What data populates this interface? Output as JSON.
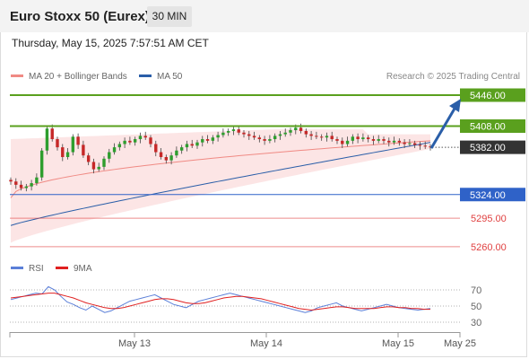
{
  "header": {
    "title": "Euro Stoxx 50 (Eurex)",
    "timeframe": "30 MIN",
    "timestamp": "Thursday, May 15, 2025 7:57:51 AM CET"
  },
  "legend": {
    "items": [
      {
        "label": "MA 20 + Bollinger Bands",
        "color": "#f08a84"
      },
      {
        "label": "MA 50",
        "color": "#2a5ea8"
      }
    ],
    "research": "Research © 2025 Trading Central"
  },
  "colors": {
    "resistance": "#5aa01e",
    "pivot": "#2f62c8",
    "support": "#e04040",
    "current": "#333333",
    "candle_up": "#2e9e2e",
    "candle_down": "#c62828",
    "arrow": "#2a5ea8"
  },
  "price_levels": [
    {
      "value": "5446.00",
      "kind": "resistance"
    },
    {
      "value": "5408.00",
      "kind": "resistance"
    },
    {
      "value": "5382.00",
      "kind": "current"
    },
    {
      "value": "5324.00",
      "kind": "pivot"
    },
    {
      "value": "5295.00",
      "kind": "support"
    },
    {
      "value": "5260.00",
      "kind": "support"
    }
  ],
  "rsi_legend": {
    "items": [
      {
        "label": "RSI",
        "color": "#5b7fd8"
      },
      {
        "label": "9MA",
        "color": "#e02020"
      }
    ]
  },
  "rsi_ticks": [
    "70",
    "50",
    "30"
  ],
  "x_axis": {
    "ticks": [
      "May 13",
      "May 14",
      "May 15",
      "May 25"
    ]
  },
  "chart_data": [
    {
      "type": "candlestick",
      "title": "",
      "x": "time (30-minute bars), May 12 to May 15, 2025",
      "y_range": [
        5245,
        5460
      ],
      "key_levels": [
        5446,
        5408,
        5382,
        5324,
        5295,
        5260
      ],
      "last_price": 5382,
      "projection": {
        "from": 5382,
        "to": 5446
      },
      "closes": [
        5340,
        5336,
        5332,
        5334,
        5338,
        5345,
        5378,
        5405,
        5392,
        5382,
        5370,
        5376,
        5395,
        5385,
        5372,
        5364,
        5355,
        5358,
        5368,
        5376,
        5382,
        5386,
        5390,
        5388,
        5392,
        5396,
        5394,
        5386,
        5376,
        5370,
        5366,
        5372,
        5378,
        5382,
        5386,
        5384,
        5388,
        5392,
        5390,
        5394,
        5397,
        5400,
        5402,
        5404,
        5400,
        5398,
        5396,
        5394,
        5392,
        5390,
        5392,
        5396,
        5398,
        5400,
        5403,
        5406,
        5402,
        5398,
        5396,
        5395,
        5394,
        5396,
        5392,
        5390,
        5386,
        5390,
        5395,
        5392,
        5394,
        5392,
        5390,
        5392,
        5390,
        5388,
        5390,
        5388,
        5386,
        5387,
        5385,
        5384,
        5383,
        5382
      ],
      "bollinger_band": {
        "upper": "~5395–5410",
        "lower": "~5265–5380"
      },
      "ma20": "rises from ~5320 to ~5390",
      "ma50": "rises from ~5285 to ~5388"
    },
    {
      "type": "line",
      "title": "RSI",
      "y_ticks": [
        70,
        50,
        30
      ],
      "series": [
        {
          "name": "RSI",
          "values": [
            58,
            60,
            62,
            64,
            66,
            65,
            74,
            70,
            62,
            55,
            52,
            48,
            45,
            50,
            46,
            42,
            44,
            48,
            52,
            56,
            58,
            60,
            62,
            64,
            60,
            56,
            52,
            50,
            48,
            52,
            56,
            58,
            60,
            62,
            64,
            66,
            64,
            62,
            60,
            58,
            56,
            54,
            52,
            50,
            48,
            46,
            44,
            42,
            44,
            48,
            50,
            52,
            54,
            50,
            48,
            46,
            44,
            46,
            48,
            50,
            52,
            50,
            48,
            47,
            46,
            45,
            46,
            47
          ]
        },
        {
          "name": "9MA",
          "values": [
            60,
            61,
            62,
            63,
            64,
            65,
            66,
            66,
            64,
            62,
            60,
            57,
            54,
            52,
            50,
            48,
            47,
            47,
            48,
            50,
            52,
            54,
            56,
            58,
            59,
            59,
            58,
            56,
            54,
            53,
            53,
            54,
            56,
            58,
            60,
            61,
            62,
            62,
            61,
            60,
            59,
            57,
            55,
            53,
            51,
            49,
            47,
            46,
            45,
            46,
            47,
            48,
            49,
            49,
            48,
            47,
            47,
            47,
            47,
            48,
            49,
            49,
            48,
            48,
            47,
            47,
            46,
            46
          ]
        }
      ]
    }
  ]
}
